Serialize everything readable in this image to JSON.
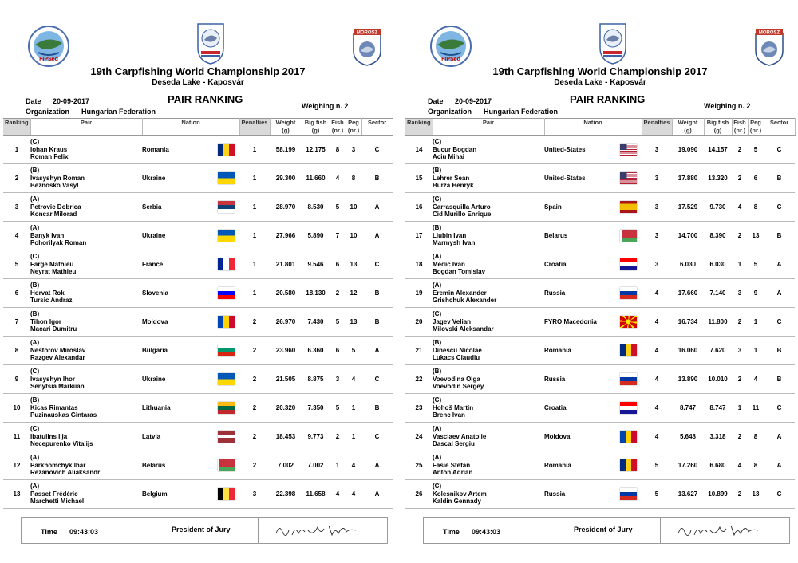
{
  "title": "19th Carpfishing World Championship 2017",
  "subtitle": "Deseda Lake - Kaposvár",
  "date_label": "Date",
  "date": "20-09-2017",
  "organization_label": "Organization",
  "organization": "Hungarian Federation",
  "heading": "PAIR RANKING",
  "weighing": "Weighing n. 2",
  "logos": {
    "left": "FIPSed",
    "right": "MOROSZ"
  },
  "columns": {
    "ranking": "Ranking",
    "pair": "Pair",
    "nation": "Nation",
    "penalties": "Penalties",
    "weight": "Weight",
    "weight_unit": "(g)",
    "bigfish": "Big fish",
    "bigfish_unit": "(g)",
    "fish": "Fish",
    "fish_unit": "(nr.)",
    "peg": "Peg",
    "peg_unit": "(nr.)",
    "sector": "Sector"
  },
  "footer": {
    "time_label": "Time",
    "time": "09:43:03",
    "president": "President of Jury"
  },
  "flags": {
    "Romania": [
      "#002B7F",
      "#FCD116",
      "#CE1126"
    ],
    "Ukraine": [
      "#0057B7",
      "#FFD700"
    ],
    "Serbia": [
      "#C6363C",
      "#0C4076",
      "#FFFFFF"
    ],
    "France": [
      "#002395",
      "#FFFFFF",
      "#ED2939"
    ],
    "Slovenia": [
      "#FFFFFF",
      "#0000FF",
      "#FF0000"
    ],
    "Moldova": [
      "#0046AE",
      "#FFD200",
      "#CC092F"
    ],
    "Bulgaria": [
      "#FFFFFF",
      "#00966E",
      "#D62612"
    ],
    "Lithuania": [
      "#FDB913",
      "#006A44",
      "#C1272D"
    ],
    "Latvia": [
      "#9E3039",
      "#FFFFFF",
      "#9E3039"
    ],
    "Belarus": [
      "#C8313E",
      "#4AA657"
    ],
    "Belgium": [
      "#000000",
      "#FAE042",
      "#ED2939"
    ],
    "United-States": [
      "#B22234",
      "#FFFFFF",
      "#3C3B6E"
    ],
    "Spain": [
      "#AA151B",
      "#F1BF00"
    ],
    "Croatia": [
      "#FF0000",
      "#FFFFFF",
      "#171796"
    ],
    "Russia": [
      "#FFFFFF",
      "#0039A6",
      "#D52B1E"
    ],
    "FYRO Macedonia": [
      "#D20000",
      "#FFE600"
    ]
  },
  "left_rows": [
    {
      "rank": "1",
      "sector": "C",
      "p1": "Iohan Kraus",
      "p2": "Roman Felix",
      "nation": "Romania",
      "pen": "1",
      "weight": "58.199",
      "big": "12.175",
      "fish": "8",
      "peg": "3"
    },
    {
      "rank": "2",
      "sector": "B",
      "p1": "Ivasyshyn Roman",
      "p2": "Beznosko Vasyl",
      "nation": "Ukraine",
      "pen": "1",
      "weight": "29.300",
      "big": "11.660",
      "fish": "4",
      "peg": "8"
    },
    {
      "rank": "3",
      "sector": "A",
      "p1": "Petrovic Dobrica",
      "p2": "Koncar Milorad",
      "nation": "Serbia",
      "pen": "1",
      "weight": "28.970",
      "big": "8.530",
      "fish": "5",
      "peg": "10"
    },
    {
      "rank": "4",
      "sector": "A",
      "p1": "Banyk Ivan",
      "p2": "Pohorilyak Roman",
      "nation": "Ukraine",
      "pen": "1",
      "weight": "27.966",
      "big": "5.890",
      "fish": "7",
      "peg": "10"
    },
    {
      "rank": "5",
      "sector": "C",
      "p1": "Farge Mathieu",
      "p2": "Neyrat Mathieu",
      "nation": "France",
      "pen": "1",
      "weight": "21.801",
      "big": "9.546",
      "fish": "6",
      "peg": "13"
    },
    {
      "rank": "6",
      "sector": "B",
      "p1": "Horvat Rok",
      "p2": "Tursic Andraz",
      "nation": "Slovenia",
      "pen": "1",
      "weight": "20.580",
      "big": "18.130",
      "fish": "2",
      "peg": "12"
    },
    {
      "rank": "7",
      "sector": "B",
      "p1": "Tihon Igor",
      "p2": "Macari Dumitru",
      "nation": "Moldova",
      "pen": "2",
      "weight": "26.970",
      "big": "7.430",
      "fish": "5",
      "peg": "13"
    },
    {
      "rank": "8",
      "sector": "A",
      "p1": "Nestorov Miroslav",
      "p2": "Razgev Alexandar",
      "nation": "Bulgaria",
      "pen": "2",
      "weight": "23.960",
      "big": "6.360",
      "fish": "6",
      "peg": "5"
    },
    {
      "rank": "9",
      "sector": "C",
      "p1": "Ivasyshyn Ihor",
      "p2": "Senytsia Markiian",
      "nation": "Ukraine",
      "pen": "2",
      "weight": "21.505",
      "big": "8.875",
      "fish": "3",
      "peg": "4"
    },
    {
      "rank": "10",
      "sector": "B",
      "p1": "Kicas Rimantas",
      "p2": "Puzinauskas Gintaras",
      "nation": "Lithuania",
      "pen": "2",
      "weight": "20.320",
      "big": "7.350",
      "fish": "5",
      "peg": "1"
    },
    {
      "rank": "11",
      "sector": "C",
      "p1": "Ibatulins Ilja",
      "p2": "Necepurenko Vitalijs",
      "nation": "Latvia",
      "pen": "2",
      "weight": "18.453",
      "big": "9.773",
      "fish": "2",
      "peg": "1"
    },
    {
      "rank": "12",
      "sector": "A",
      "p1": "Parkhomchyk Ihar",
      "p2": "Rezanovich Aliaksandr",
      "nation": "Belarus",
      "pen": "2",
      "weight": "7.002",
      "big": "7.002",
      "fish": "1",
      "peg": "4"
    },
    {
      "rank": "13",
      "sector": "A",
      "p1": "Passet Frédéric",
      "p2": "Marchetti Michael",
      "nation": "Belgium",
      "pen": "3",
      "weight": "22.398",
      "big": "11.658",
      "fish": "4",
      "peg": "4"
    }
  ],
  "right_rows": [
    {
      "rank": "14",
      "sector": "C",
      "p1": "Bucur Bogdan",
      "p2": "Aciu Mihai",
      "nation": "United-States",
      "pen": "3",
      "weight": "19.090",
      "big": "14.157",
      "fish": "2",
      "peg": "5"
    },
    {
      "rank": "15",
      "sector": "B",
      "p1": "Lehrer Sean",
      "p2": "Burza Henryk",
      "nation": "United-States",
      "pen": "3",
      "weight": "17.880",
      "big": "13.320",
      "fish": "2",
      "peg": "6"
    },
    {
      "rank": "16",
      "sector": "C",
      "p1": "Carrasquilla Arturo",
      "p2": "Cid Murillo Enrique",
      "nation": "Spain",
      "pen": "3",
      "weight": "17.529",
      "big": "9.730",
      "fish": "4",
      "peg": "8"
    },
    {
      "rank": "17",
      "sector": "B",
      "p1": "Liubin Ivan",
      "p2": "Marmysh Ivan",
      "nation": "Belarus",
      "pen": "3",
      "weight": "14.700",
      "big": "8.390",
      "fish": "2",
      "peg": "13"
    },
    {
      "rank": "18",
      "sector": "A",
      "p1": "Medic Ivan",
      "p2": "Bogdan Tomislav",
      "nation": "Croatia",
      "pen": "3",
      "weight": "6.030",
      "big": "6.030",
      "fish": "1",
      "peg": "5"
    },
    {
      "rank": "19",
      "sector": "A",
      "p1": "Eremin Alexander",
      "p2": "Grishchuk Alexander",
      "nation": "Russia",
      "pen": "4",
      "weight": "17.660",
      "big": "7.140",
      "fish": "3",
      "peg": "9"
    },
    {
      "rank": "20",
      "sector": "C",
      "p1": "Jagev Velian",
      "p2": "Milovski Aleksandar",
      "nation": "FYRO Macedonia",
      "pen": "4",
      "weight": "16.734",
      "big": "11.800",
      "fish": "2",
      "peg": "1"
    },
    {
      "rank": "21",
      "sector": "B",
      "p1": "Dinescu Nicolae",
      "p2": "Lukacs Claudiu",
      "nation": "Romania",
      "pen": "4",
      "weight": "16.060",
      "big": "7.620",
      "fish": "3",
      "peg": "1"
    },
    {
      "rank": "22",
      "sector": "B",
      "p1": "Voevodina Olga",
      "p2": "Voevodin Sergey",
      "nation": "Russia",
      "pen": "4",
      "weight": "13.890",
      "big": "10.010",
      "fish": "2",
      "peg": "4"
    },
    {
      "rank": "23",
      "sector": "C",
      "p1": "Hohoš Martin",
      "p2": "Brenc Ivan",
      "nation": "Croatia",
      "pen": "4",
      "weight": "8.747",
      "big": "8.747",
      "fish": "1",
      "peg": "11"
    },
    {
      "rank": "24",
      "sector": "A",
      "p1": "Vasciaev Anatolie",
      "p2": "Dascal Sergiu",
      "nation": "Moldova",
      "pen": "4",
      "weight": "5.648",
      "big": "3.318",
      "fish": "2",
      "peg": "8"
    },
    {
      "rank": "25",
      "sector": "A",
      "p1": "Fasie Stefan",
      "p2": "Anton Adrian",
      "nation": "Romania",
      "pen": "5",
      "weight": "17.260",
      "big": "6.680",
      "fish": "4",
      "peg": "8"
    },
    {
      "rank": "26",
      "sector": "C",
      "p1": "Kolesnikov Artem",
      "p2": "Kaldin Gennady",
      "nation": "Russia",
      "pen": "5",
      "weight": "13.627",
      "big": "10.899",
      "fish": "2",
      "peg": "13"
    }
  ]
}
